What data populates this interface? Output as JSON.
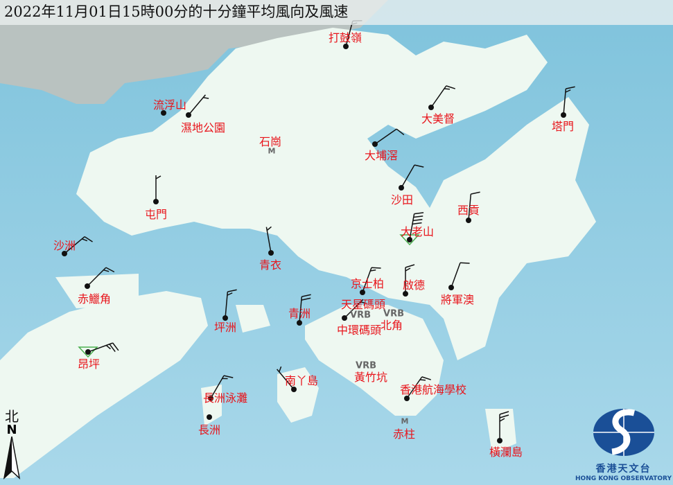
{
  "title": "2022年11月01日15時00分的十分鐘平均風向及風速",
  "north": {
    "label_zh": "北",
    "label_en": "N"
  },
  "logo": {
    "name_zh": "香港天文台",
    "name_en": "HONG KONG OBSERVATORY"
  },
  "colors": {
    "sea": "#9fd2e6",
    "land": "#eef8f1",
    "label": "#e8141b",
    "barb": "#111111",
    "triangle": "#4caf50"
  },
  "stations": [
    {
      "name": "打鼓嶺",
      "wind_dir_deg": 15,
      "wind_kt": 15
    },
    {
      "name": "流浮山"
    },
    {
      "name": "濕地公園",
      "wind_dir_deg": 40,
      "wind_kt": 5
    },
    {
      "name": "石崗",
      "marker": "M"
    },
    {
      "name": "大美督",
      "wind_dir_deg": 35,
      "wind_kt": 15
    },
    {
      "name": "大埔滘",
      "wind_dir_deg": 55,
      "wind_kt": 10
    },
    {
      "name": "塔門",
      "wind_dir_deg": 5,
      "wind_kt": 15
    },
    {
      "name": "沙田",
      "wind_dir_deg": 30,
      "wind_kt": 10
    },
    {
      "name": "屯門",
      "wind_dir_deg": 0,
      "wind_kt": 5
    },
    {
      "name": "西貢",
      "wind_dir_deg": 5,
      "wind_kt": 10
    },
    {
      "name": "大老山",
      "wind_dir_deg": 10,
      "wind_kt": 40,
      "marker": "triangle"
    },
    {
      "name": "沙洲",
      "wind_dir_deg": 50,
      "wind_kt": 15
    },
    {
      "name": "青衣",
      "wind_dir_deg": 350,
      "wind_kt": 5
    },
    {
      "name": "赤鱲角",
      "wind_dir_deg": 45,
      "wind_kt": 15
    },
    {
      "name": "京士柏",
      "wind_dir_deg": 20,
      "wind_kt": 15
    },
    {
      "name": "啟德",
      "wind_dir_deg": 0,
      "wind_kt": 15
    },
    {
      "name": "將軍澳",
      "wind_dir_deg": 20,
      "wind_kt": 10
    },
    {
      "name": "天星碼頭",
      "wind": "VRB"
    },
    {
      "name": "中環碼頭",
      "wind_dir_deg": 45,
      "wind_kt": 5
    },
    {
      "name": "北角",
      "wind": "VRB"
    },
    {
      "name": "坪洲",
      "wind_dir_deg": 5,
      "wind_kt": 15
    },
    {
      "name": "青洲",
      "wind_dir_deg": 5,
      "wind_kt": 20
    },
    {
      "name": "昂坪",
      "wind_dir_deg": 70,
      "wind_kt": 25,
      "marker": "triangle"
    },
    {
      "name": "黃竹坑",
      "wind": "VRB"
    },
    {
      "name": "南丫島",
      "wind_dir_deg": 320,
      "wind_kt": 5
    },
    {
      "name": "長洲泳灘",
      "wind_dir_deg": 30,
      "wind_kt": 15
    },
    {
      "name": "長洲"
    },
    {
      "name": "香港航海學校",
      "wind_dir_deg": 35,
      "wind_kt": 15
    },
    {
      "name": "赤柱",
      "marker": "M"
    },
    {
      "name": "橫瀾島",
      "wind_dir_deg": 0,
      "wind_kt": 25
    }
  ]
}
